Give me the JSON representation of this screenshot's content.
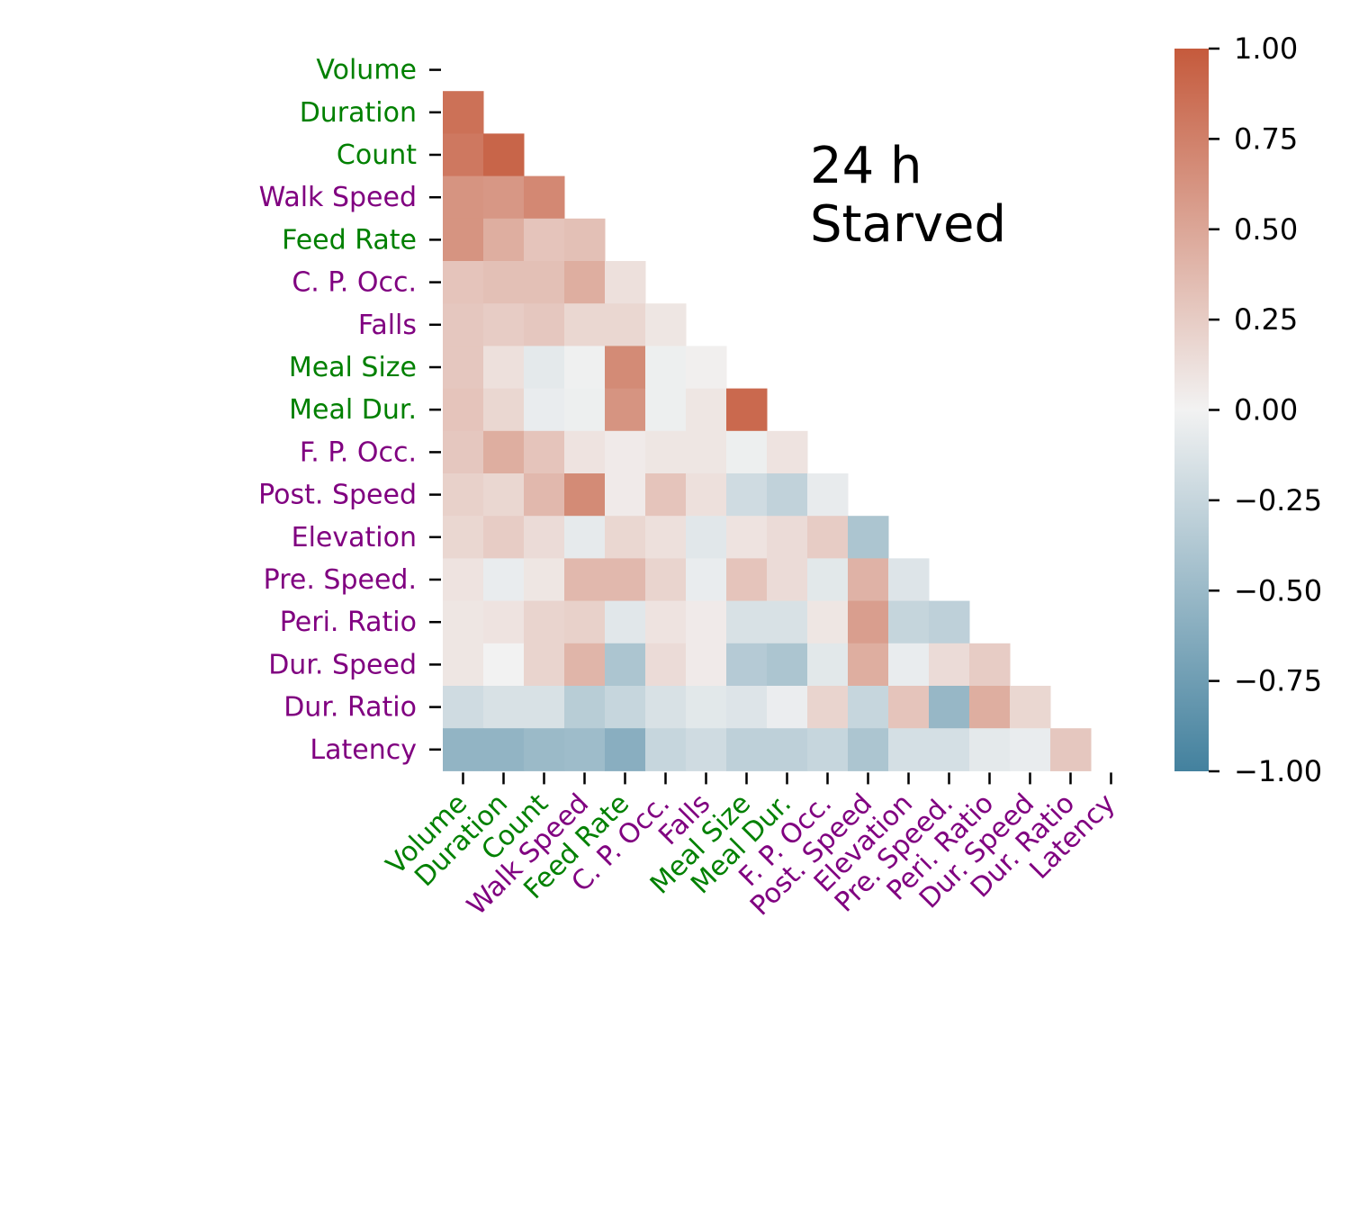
{
  "chart_data": {
    "type": "heatmap",
    "title": "",
    "annotation": [
      "24 h",
      "Starved"
    ],
    "labels": [
      "Volume",
      "Duration",
      "Count",
      "Walk Speed",
      "Feed Rate",
      "C. P. Occ.",
      "Falls",
      "Meal Size",
      "Meal Dur.",
      "F. P. Occ.",
      "Post. Speed",
      "Elevation",
      "Pre. Speed.",
      "Peri. Ratio",
      "Dur. Speed",
      "Dur. Ratio",
      "Latency"
    ],
    "label_colors": [
      "#008000",
      "#008000",
      "#008000",
      "#800080",
      "#008000",
      "#800080",
      "#800080",
      "#008000",
      "#008000",
      "#800080",
      "#800080",
      "#800080",
      "#800080",
      "#800080",
      "#800080",
      "#800080",
      "#800080"
    ],
    "mask": "upper triangle including diagonal",
    "values": [
      [],
      [
        0.85
      ],
      [
        0.8,
        0.93
      ],
      [
        0.62,
        0.6,
        0.7
      ],
      [
        0.62,
        0.45,
        0.3,
        0.33
      ],
      [
        0.3,
        0.33,
        0.33,
        0.45,
        0.12
      ],
      [
        0.28,
        0.25,
        0.28,
        0.18,
        0.18,
        0.08
      ],
      [
        0.28,
        0.12,
        -0.08,
        -0.02,
        0.68,
        -0.03,
        0.02
      ],
      [
        0.3,
        0.18,
        -0.05,
        -0.03,
        0.62,
        -0.03,
        0.08,
        0.9
      ],
      [
        0.28,
        0.45,
        0.3,
        0.1,
        0.05,
        0.08,
        0.08,
        -0.03,
        0.1
      ],
      [
        0.22,
        0.18,
        0.38,
        0.68,
        0.05,
        0.3,
        0.12,
        -0.2,
        -0.28,
        -0.06
      ],
      [
        0.18,
        0.25,
        0.15,
        -0.07,
        0.18,
        0.12,
        -0.1,
        0.1,
        0.15,
        0.25,
        -0.4
      ],
      [
        0.1,
        -0.05,
        0.08,
        0.38,
        0.38,
        0.2,
        -0.05,
        0.3,
        0.15,
        -0.09,
        0.42,
        -0.12
      ],
      [
        0.08,
        0.1,
        0.2,
        0.22,
        -0.1,
        0.1,
        0.05,
        -0.15,
        -0.15,
        0.08,
        0.55,
        -0.26,
        -0.3
      ],
      [
        0.08,
        0.0,
        0.2,
        0.4,
        -0.4,
        0.15,
        0.05,
        -0.35,
        -0.4,
        -0.09,
        0.45,
        -0.05,
        0.15,
        0.25
      ],
      [
        -0.2,
        -0.15,
        -0.15,
        -0.33,
        -0.25,
        -0.15,
        -0.09,
        -0.12,
        -0.04,
        0.2,
        -0.25,
        0.3,
        -0.52,
        0.45,
        0.18
      ],
      [
        -0.55,
        -0.55,
        -0.5,
        -0.48,
        -0.6,
        -0.25,
        -0.2,
        -0.3,
        -0.3,
        -0.25,
        -0.4,
        -0.17,
        -0.17,
        -0.08,
        -0.05,
        0.28
      ]
    ],
    "colorbar": {
      "min": -1.0,
      "max": 1.0,
      "ticks": [
        "1.00",
        "0.75",
        "0.50",
        "0.25",
        "0.00",
        "−0.25",
        "−0.50",
        "−0.75",
        "−1.00"
      ],
      "colors": [
        "#43819e",
        "#f2f2f2",
        "#c55a3c"
      ]
    }
  }
}
